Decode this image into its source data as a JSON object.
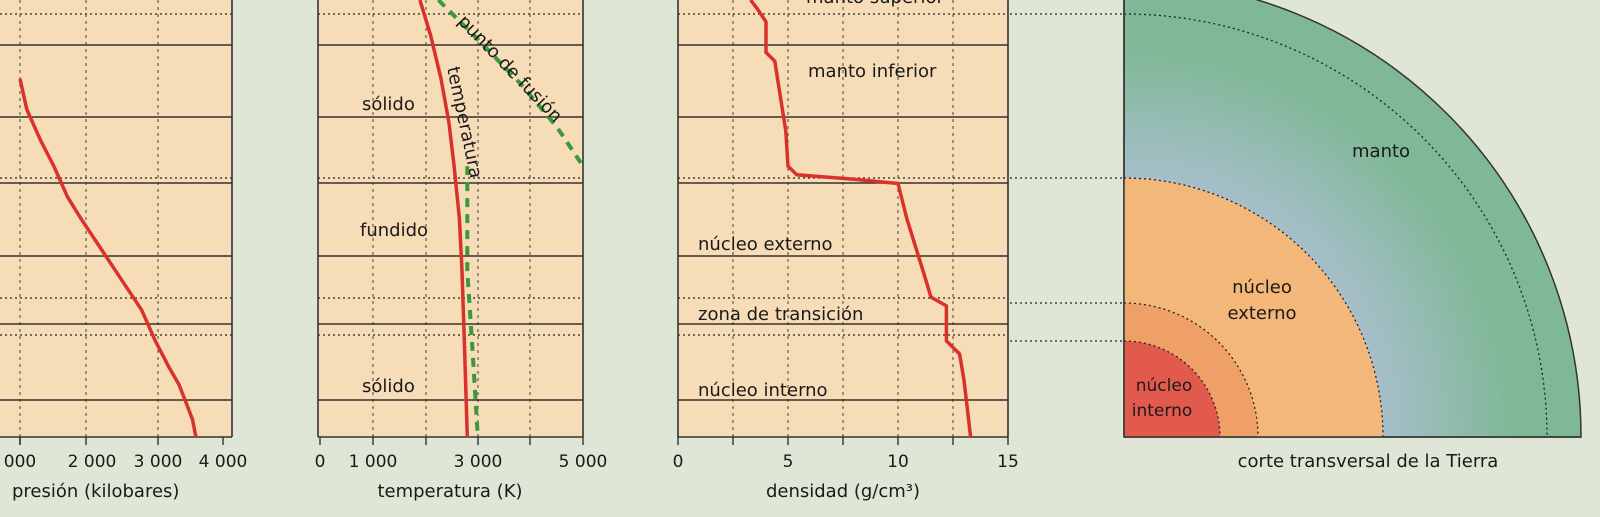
{
  "colors": {
    "background": "#dfe6d5",
    "plot_fill": "#f7dcb8",
    "curve": "#d9312b",
    "fusion": "#3a9a3a",
    "mantle": "#7fb896",
    "mantle_center": "#a8bfcc",
    "outer_core": "#f4b77a",
    "transition": "#eea067",
    "inner_core": "#e25a4d"
  },
  "chart_data": [
    {
      "type": "line",
      "xlabel": "presión (kilobares)",
      "tick_labels": [
        "000",
        "2 000",
        "3 000",
        "4 000"
      ],
      "xlim": [
        1000,
        4000
      ],
      "grid": true,
      "series": [
        {
          "x": [
            1000,
            1100,
            1300,
            1500,
            1700,
            1900,
            2200,
            2500,
            2800,
            3000,
            3200,
            3350,
            3450,
            3550,
            3600
          ],
          "depth_fraction": [
            0.18,
            0.25,
            0.32,
            0.38,
            0.45,
            0.5,
            0.57,
            0.64,
            0.71,
            0.78,
            0.84,
            0.88,
            0.92,
            0.96,
            1.0
          ]
        }
      ]
    },
    {
      "type": "line",
      "xlabel": "temperatura (K)",
      "tick_labels": [
        "0",
        "1 000",
        "3 000",
        "5 000"
      ],
      "xlim": [
        0,
        5000
      ],
      "grid": true,
      "labels": {
        "solid_top": "sólido",
        "melted": "fundido",
        "solid_bottom": "sólido"
      },
      "series": [
        {
          "name": "temperatura",
          "x": [
            1900,
            2100,
            2300,
            2450,
            2550,
            2650,
            2700,
            2750,
            2800
          ],
          "depth_fraction": [
            0.0,
            0.08,
            0.18,
            0.28,
            0.38,
            0.5,
            0.62,
            0.8,
            1.0
          ]
        },
        {
          "name": "punto de fusión",
          "x": [
            2250,
            3000,
            3800,
            4500,
            5000
          ],
          "depth_fraction": [
            0.0,
            0.09,
            0.19,
            0.29,
            0.38
          ],
          "x_lower": [
            2800,
            2800,
            2900,
            3000
          ],
          "depth_lower": [
            0.38,
            0.62,
            0.8,
            1.0
          ]
        }
      ]
    },
    {
      "type": "line",
      "xlabel": "densidad (g/cm³)",
      "tick_labels": [
        "0",
        "5",
        "10",
        "15"
      ],
      "xlim": [
        0,
        15
      ],
      "grid": true,
      "labels": {
        "upper_mantle": "manto superior",
        "lower_mantle": "manto inferior",
        "outer_core": "núcleo externo",
        "transition_zone": "zona de transición",
        "inner_core": "núcleo interno"
      },
      "series": [
        {
          "x": [
            3.3,
            3.6,
            4.0,
            4.0,
            4.4,
            4.9,
            5.0,
            5.4,
            8.0,
            10.0,
            10.4,
            11.2,
            11.5,
            12.2,
            12.2,
            12.8,
            13.0,
            13.3
          ],
          "depth_fraction": [
            0.0,
            0.02,
            0.05,
            0.12,
            0.14,
            0.3,
            0.38,
            0.4,
            0.41,
            0.42,
            0.5,
            0.63,
            0.68,
            0.7,
            0.78,
            0.81,
            0.87,
            1.0
          ]
        }
      ]
    }
  ],
  "cross_section": {
    "caption": "corte transversal de la Tierra",
    "labels": {
      "mantle": "manto",
      "outer_core_1": "núcleo",
      "outer_core_2": "externo",
      "inner_core_1": "núcleo",
      "inner_core_2": "interno"
    }
  }
}
